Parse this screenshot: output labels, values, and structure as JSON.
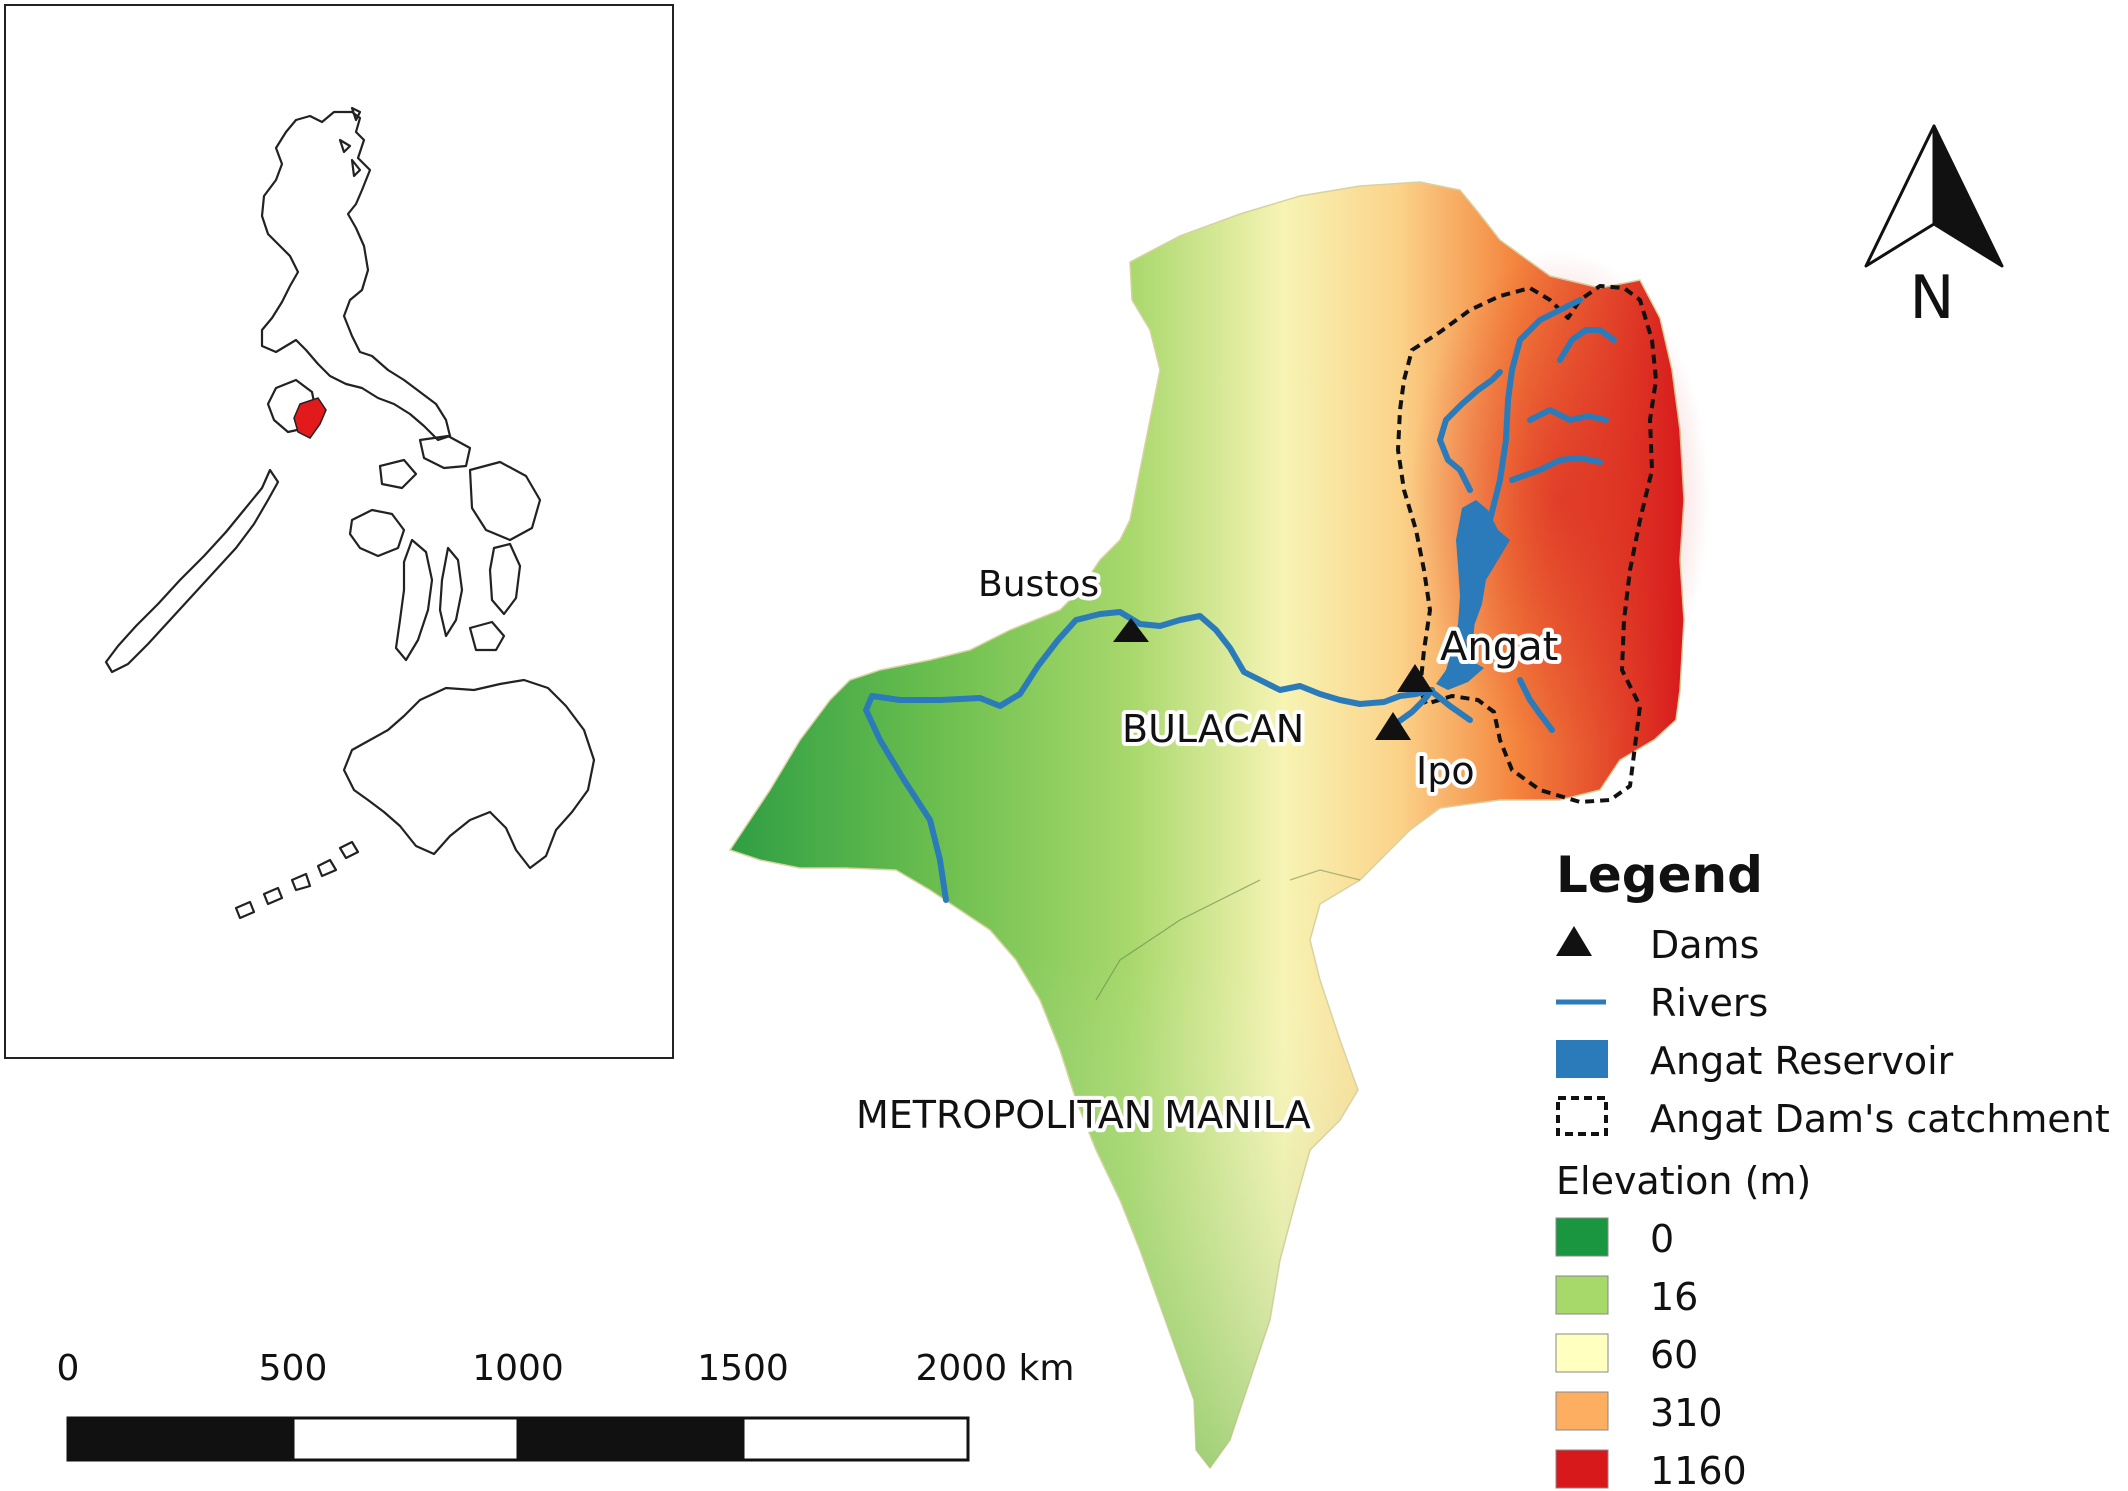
{
  "colors": {
    "elevation_0": "#1a9641",
    "elevation_16": "#a6d96a",
    "elevation_60": "#ffffc0",
    "elevation_310": "#fdae61",
    "elevation_1160": "#d7191c",
    "river": "#2b7bba",
    "reservoir": "#2b7bba",
    "inset_highlight": "#e31a1c"
  },
  "map": {
    "labels": {
      "bustos": "Bustos",
      "bulacan": "BULACAN",
      "angat": "Angat",
      "ipo": "Ipo",
      "manila": "METROPOLITAN MANILA"
    },
    "north_arrow": {
      "letter": "N",
      "icon": "north-arrow-icon"
    }
  },
  "legend": {
    "title": "Legend",
    "dams": "Dams",
    "rivers": "Rivers",
    "reservoir": "Angat Reservoir",
    "catchment": "Angat Dam's catchment",
    "elevation_title": "Elevation (m)",
    "elevation_classes": [
      "0",
      "16",
      "60",
      "310",
      "1160"
    ]
  },
  "scale_bar": {
    "ticks": [
      "0",
      "500",
      "1000",
      "1500",
      "2000 km"
    ]
  }
}
